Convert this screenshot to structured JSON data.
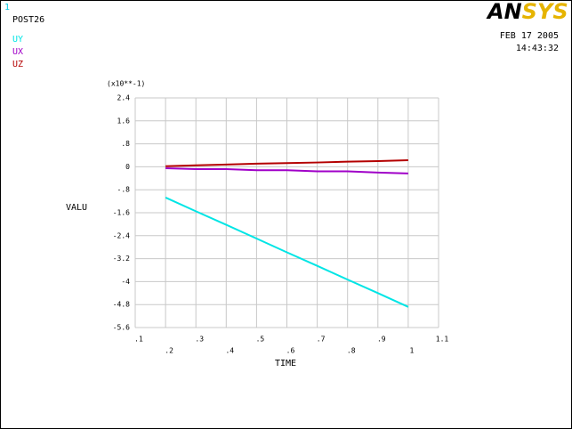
{
  "window_number": "1",
  "module": "POST26",
  "logo": [
    "AN",
    "SYS"
  ],
  "date": "FEB 17 2005",
  "time": "14:43:32",
  "chart_data": {
    "type": "line",
    "y_multiplier": "(x10**-1)",
    "ylabel": "VALU",
    "xlabel": "TIME",
    "x": [
      0.2,
      0.3,
      0.4,
      0.5,
      0.6,
      0.7,
      0.8,
      0.9,
      1.0
    ],
    "series": [
      {
        "name": "UY",
        "color": "#00e5e5",
        "values": [
          -1.07,
          -1.55,
          -2.02,
          -2.5,
          -2.98,
          -3.45,
          -3.93,
          -4.4,
          -4.88
        ]
      },
      {
        "name": "UX",
        "color": "#a000c8",
        "values": [
          -0.05,
          -0.08,
          -0.08,
          -0.12,
          -0.12,
          -0.16,
          -0.16,
          -0.2,
          -0.23
        ]
      },
      {
        "name": "UZ",
        "color": "#b40000",
        "values": [
          0.02,
          0.05,
          0.08,
          0.11,
          0.13,
          0.15,
          0.18,
          0.2,
          0.23
        ]
      }
    ],
    "xlim": [
      0.1,
      1.1
    ],
    "xticks": [
      {
        "value": 0.1,
        "label": ".1"
      },
      {
        "value": 0.2,
        "label": ".2"
      },
      {
        "value": 0.3,
        "label": ".3"
      },
      {
        "value": 0.4,
        "label": ".4"
      },
      {
        "value": 0.5,
        "label": ".5"
      },
      {
        "value": 0.6,
        "label": ".6"
      },
      {
        "value": 0.7,
        "label": ".7"
      },
      {
        "value": 0.8,
        "label": ".8"
      },
      {
        "value": 0.9,
        "label": ".9"
      },
      1,
      1.1
    ],
    "ylim": [
      -5.6,
      2.4
    ],
    "yticks": [
      2.4,
      1.6,
      {
        "value": 0.8,
        "label": ".8"
      },
      0,
      {
        "value": -0.8,
        "label": "-.8"
      },
      -1.6,
      -2.4,
      -3.2,
      -4,
      -4.8,
      -5.6
    ],
    "grid": true
  }
}
